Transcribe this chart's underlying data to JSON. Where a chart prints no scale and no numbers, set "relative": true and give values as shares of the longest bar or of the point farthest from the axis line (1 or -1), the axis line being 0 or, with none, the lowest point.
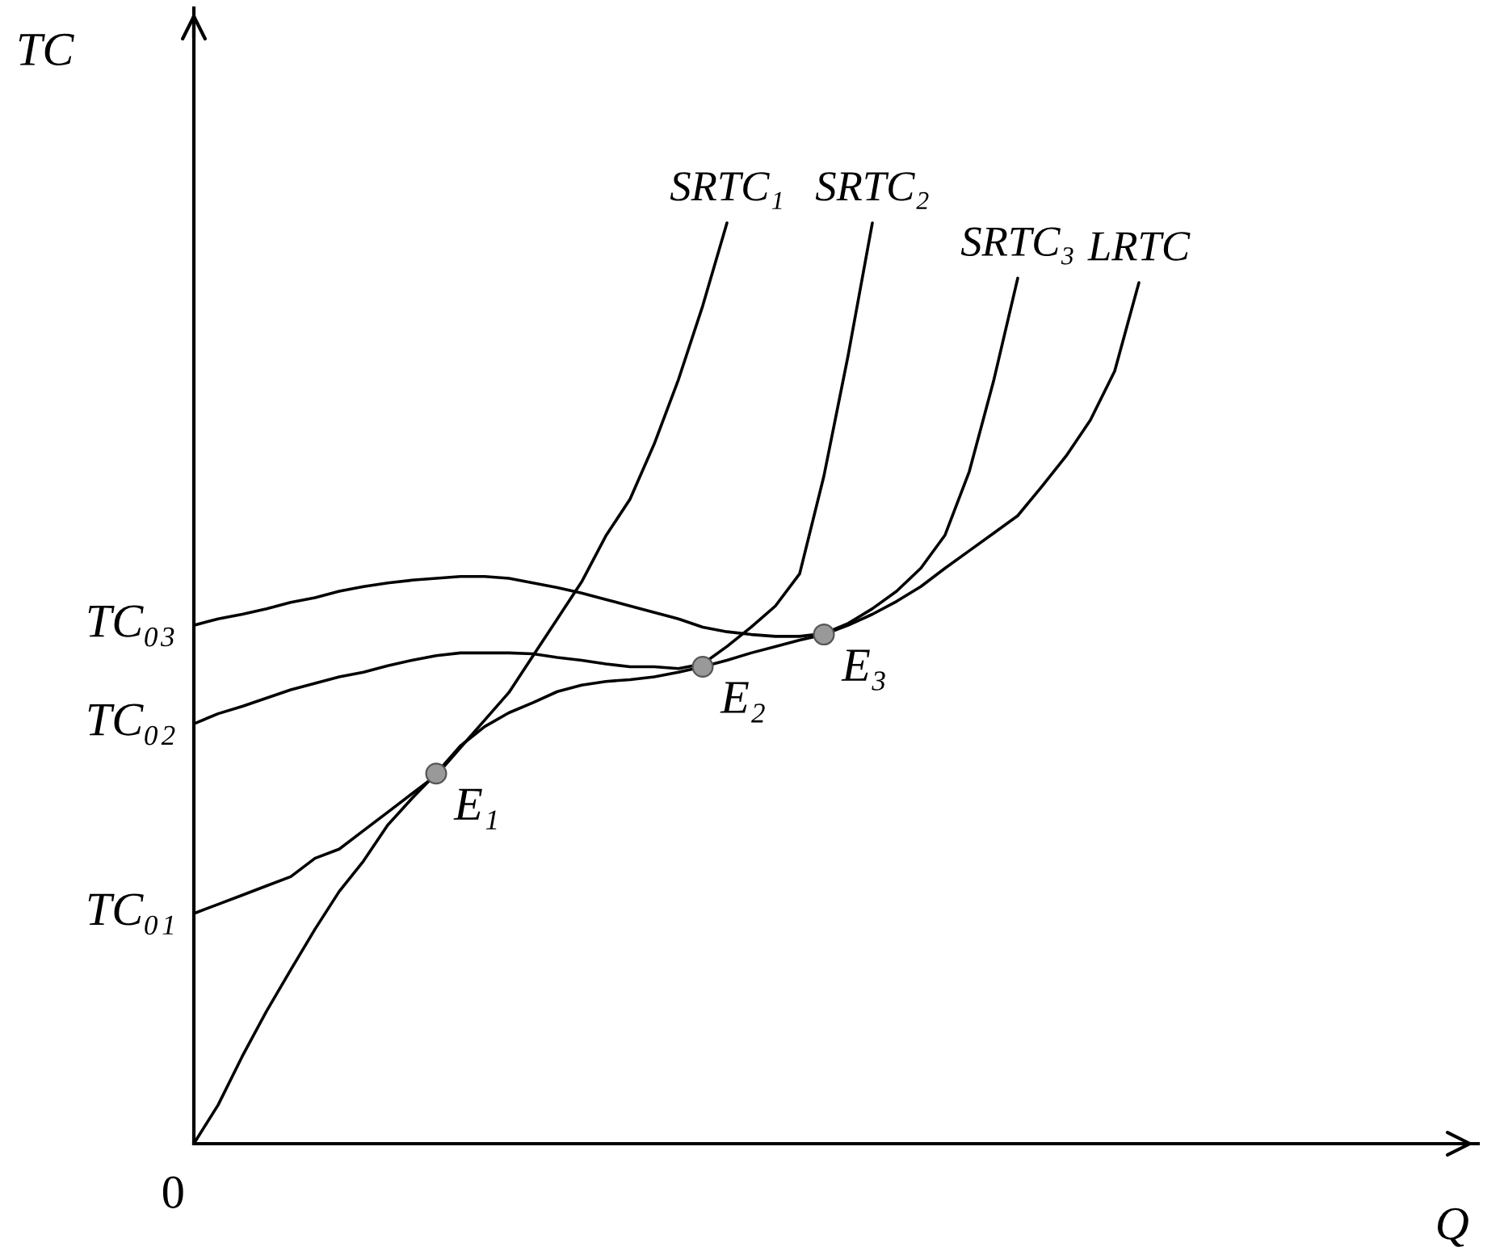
{
  "chart_data": {
    "type": "line",
    "relative": true,
    "ylabel": "TC",
    "categories": [
      null,
      null,
      null,
      null,
      null,
      null,
      null,
      null,
      null,
      null,
      null,
      null,
      null,
      null,
      null,
      null,
      null,
      null,
      null,
      null,
      null,
      null,
      null,
      null,
      null,
      null,
      null,
      null,
      null,
      null,
      null,
      null,
      null,
      null,
      null,
      null,
      null,
      null,
      null,
      null,
      null
    ],
    "series": [
      {
        "name": "SRTC₁",
        "color": "#000000",
        "values": [
          0.25,
          0.26,
          0.27,
          0.28,
          0.29,
          0.31,
          0.32,
          0.34,
          0.36,
          0.38,
          0.4,
          0.43,
          0.46,
          0.49,
          0.53,
          0.57,
          0.61,
          0.66,
          0.7,
          0.76,
          0.83,
          0.91,
          1.0,
          null,
          null,
          null,
          null,
          null,
          null,
          null,
          null,
          null,
          null,
          null,
          null,
          null,
          null,
          null,
          null,
          null,
          null
        ]
      },
      {
        "name": "SRTC₂",
        "color": "#000000",
        "values": [
          0.456,
          0.467,
          0.475,
          0.484,
          0.493,
          0.5,
          0.507,
          0.512,
          0.519,
          0.525,
          0.53,
          0.533,
          0.533,
          0.533,
          0.532,
          0.528,
          0.525,
          0.521,
          0.518,
          0.518,
          0.516,
          0.521,
          0.54,
          0.561,
          0.584,
          0.619,
          0.725,
          0.856,
          1.0,
          null,
          null,
          null,
          null,
          null,
          null,
          null,
          null,
          null,
          null,
          null,
          null
        ]
      },
      {
        "name": "SRTC₃",
        "color": "#000000",
        "values": [
          0.563,
          0.57,
          0.575,
          0.581,
          0.588,
          0.593,
          0.6,
          0.605,
          0.609,
          0.612,
          0.614,
          0.616,
          0.616,
          0.614,
          0.609,
          0.604,
          0.598,
          0.591,
          0.584,
          0.577,
          0.57,
          0.561,
          0.556,
          0.553,
          0.551,
          0.551,
          0.554,
          0.565,
          0.581,
          0.6,
          0.625,
          0.661,
          0.73,
          0.828,
          0.94,
          null,
          null,
          null,
          null,
          null,
          null
        ]
      },
      {
        "name": "LRTC",
        "color": "#000000",
        "values": [
          0,
          0.042,
          0.095,
          0.144,
          0.189,
          0.233,
          0.274,
          0.307,
          0.346,
          0.375,
          0.402,
          0.432,
          0.453,
          0.468,
          0.479,
          0.491,
          0.498,
          0.502,
          0.504,
          0.507,
          0.512,
          0.518,
          0.525,
          0.533,
          0.54,
          0.547,
          0.553,
          0.563,
          0.575,
          0.589,
          0.605,
          0.625,
          0.644,
          0.663,
          0.682,
          0.714,
          0.747,
          0.786,
          0.839,
          0.935,
          null
        ]
      }
    ],
    "annotations": [
      "TC₀₃",
      "TC₀₂",
      "TC₀₁",
      "0",
      "E₁",
      "E₂",
      "E₃",
      "Q"
    ]
  }
}
